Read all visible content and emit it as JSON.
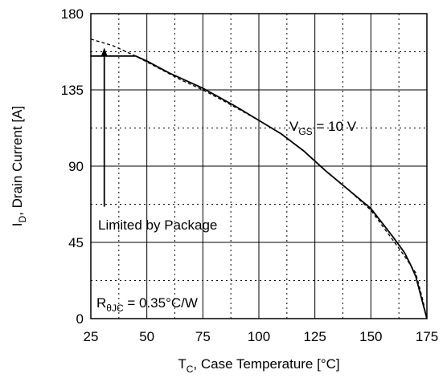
{
  "chart_data": {
    "type": "line",
    "xlabel": {
      "main": "T",
      "sub": "C",
      "rest": ", Case Temperature [°C]"
    },
    "ylabel": {
      "main": "I",
      "sub": "D",
      "rest": ", Drain Current [A]"
    },
    "xlim": [
      25,
      175
    ],
    "ylim": [
      0,
      180
    ],
    "x_ticks": [
      "25",
      "50",
      "75",
      "100",
      "125",
      "150",
      "175"
    ],
    "y_ticks": [
      "0",
      "45",
      "90",
      "135",
      "180"
    ],
    "grid": {
      "major": "solid",
      "minor": "dotted"
    },
    "series": [
      {
        "style": "solid",
        "x": [
          25,
          45,
          50,
          60,
          75,
          90,
          100,
          110,
          120,
          130,
          140,
          150,
          160,
          165,
          168,
          170,
          171,
          172,
          173,
          174,
          175
        ],
        "y": [
          155,
          155,
          152,
          145,
          136,
          125,
          117,
          109,
          99,
          87,
          76,
          65,
          48,
          39,
          31,
          25,
          20,
          15,
          10,
          5,
          0
        ]
      },
      {
        "style": "dashed",
        "x": [
          25,
          35,
          45,
          55,
          65,
          75,
          85,
          100,
          110,
          120,
          130,
          140,
          150,
          160,
          165,
          170,
          173,
          175
        ],
        "y": [
          165,
          161,
          155,
          148,
          141,
          135,
          128,
          117,
          109,
          99,
          87,
          76,
          64,
          46,
          37,
          27,
          12,
          0
        ]
      }
    ],
    "annotations": {
      "vgs": {
        "main": "V",
        "sub": "GS",
        "rest": " = 10 V"
      },
      "limited": "Limited by Package",
      "rth": {
        "main": "R",
        "sub": "θJC",
        "rest": " = 0.35°C/W"
      }
    },
    "arrow": {
      "x": 31,
      "y_start": 66,
      "y_end": 160
    }
  }
}
